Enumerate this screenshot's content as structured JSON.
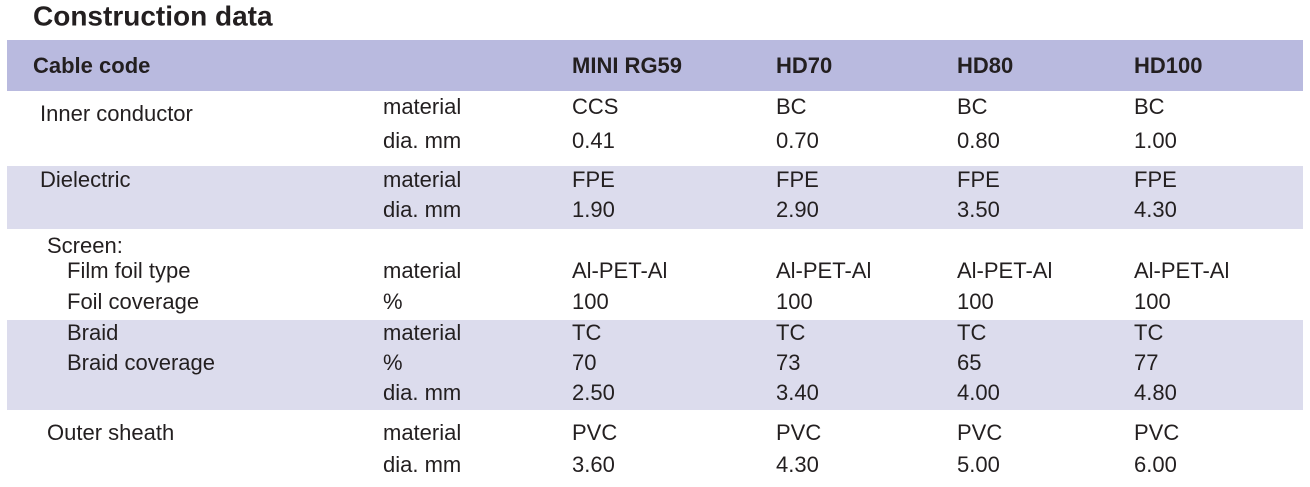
{
  "title": "Construction data",
  "table": {
    "header": {
      "label": "Cable code",
      "columns": [
        "MINI RG59",
        "HD70",
        "HD80",
        "HD100"
      ]
    },
    "groups": [
      {
        "rows": [
          {
            "label": "Inner conductor",
            "property": "material",
            "values": [
              "CCS",
              "BC",
              "BC",
              "BC"
            ]
          },
          {
            "property": "dia. mm",
            "values": [
              "0.41",
              "0.70",
              "0.80",
              "1.00"
            ]
          }
        ]
      },
      {
        "rows": [
          {
            "label": "Dielectric",
            "property": "material",
            "values": [
              "FPE",
              "FPE",
              "FPE",
              "FPE"
            ]
          },
          {
            "property": "dia. mm",
            "values": [
              "1.90",
              "2.90",
              "3.50",
              "4.30"
            ]
          }
        ]
      },
      {
        "title": "Screen:",
        "rows": [
          {
            "label": "Film foil type",
            "property": "material",
            "values": [
              "Al-PET-Al",
              "Al-PET-Al",
              "Al-PET-Al",
              "Al-PET-Al"
            ]
          },
          {
            "label": "Foil coverage",
            "property": "%",
            "values": [
              "100",
              "100",
              "100",
              "100"
            ]
          }
        ]
      },
      {
        "rows": [
          {
            "label": "Braid",
            "property": "material",
            "values": [
              "TC",
              "TC",
              "TC",
              "TC"
            ]
          },
          {
            "label": "Braid coverage",
            "property": "%",
            "values": [
              "70",
              "73",
              "65",
              "77"
            ]
          },
          {
            "property": "dia. mm",
            "values": [
              "2.50",
              "3.40",
              "4.00",
              "4.80"
            ]
          }
        ]
      },
      {
        "rows": [
          {
            "label": "Outer sheath",
            "property": "material",
            "values": [
              "PVC",
              "PVC",
              "PVC",
              "PVC"
            ]
          },
          {
            "property": "dia. mm",
            "values": [
              "3.60",
              "4.30",
              "5.00",
              "6.00"
            ]
          }
        ]
      }
    ]
  }
}
